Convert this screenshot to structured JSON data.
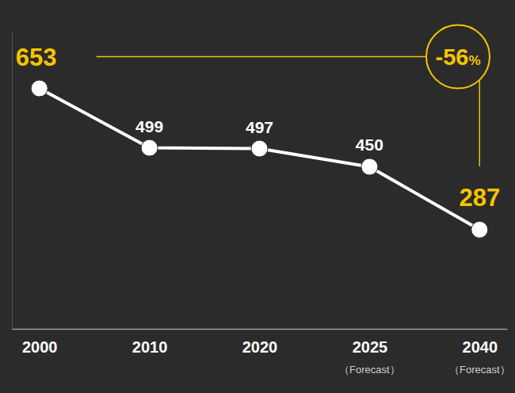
{
  "chart_data": {
    "type": "line",
    "categories": [
      "2000",
      "2010",
      "2020",
      "2025",
      "2040"
    ],
    "category_notes": [
      null,
      null,
      null,
      "（Forecast）",
      "（Forecast）"
    ],
    "values": [
      653,
      499,
      497,
      450,
      287
    ],
    "color": "#ffffff",
    "marker": "circle",
    "data_labels": true,
    "tick_labels": "x",
    "grid": false,
    "ylim": [
      30,
      800
    ],
    "annotation": "-56%"
  }
}
